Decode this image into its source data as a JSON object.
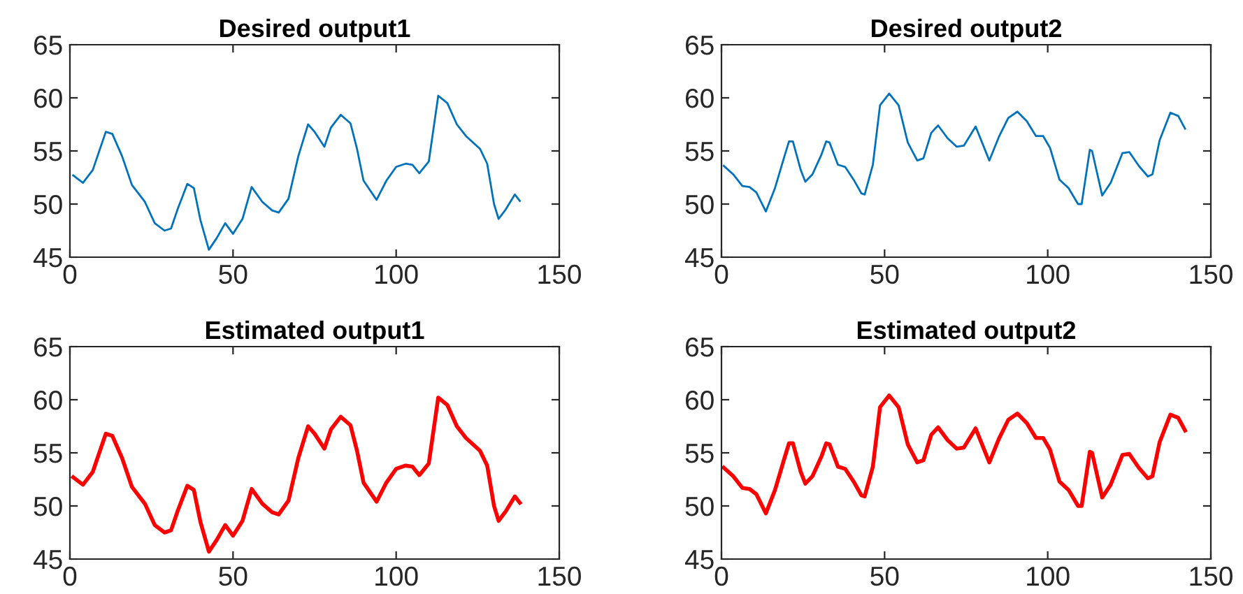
{
  "chart_data": [
    {
      "type": "line",
      "title": "Desired output1",
      "xlim": [
        0,
        150
      ],
      "ylim": [
        45,
        65
      ],
      "xticks": [
        0,
        50,
        100,
        150
      ],
      "yticks": [
        45,
        50,
        55,
        60,
        65
      ],
      "grid": false,
      "legend": false,
      "series": [
        {
          "color": "#0072bd",
          "x": [
            1,
            4,
            7,
            11,
            13,
            16,
            19,
            23,
            26,
            29,
            31,
            33,
            36,
            38,
            40,
            42.6,
            45,
            47.6,
            50,
            52.9,
            55.7,
            59,
            62,
            64,
            67,
            70,
            73,
            75,
            78,
            80,
            83,
            86,
            88,
            90,
            94,
            97,
            100,
            102.9,
            105,
            107.1,
            110,
            112.9,
            115.7,
            118.6,
            121.4,
            125.7,
            127.9,
            130,
            131.4,
            133.6,
            136.4,
            137.9
          ],
          "values": [
            52.7,
            52.0,
            53.2,
            56.8,
            56.6,
            54.5,
            51.8,
            50.2,
            48.2,
            47.5,
            47.7,
            49.5,
            51.9,
            51.5,
            48.5,
            45.7,
            46.8,
            48.2,
            47.2,
            48.6,
            51.6,
            50.2,
            49.4,
            49.2,
            50.5,
            54.5,
            57.5,
            56.8,
            55.4,
            57.2,
            58.4,
            57.6,
            55.2,
            52.2,
            50.4,
            52.2,
            53.5,
            53.8,
            53.7,
            52.9,
            54.0,
            60.2,
            59.5,
            57.5,
            56.4,
            55.2,
            53.8,
            50.0,
            48.6,
            49.5,
            50.9,
            50.3
          ]
        }
      ]
    },
    {
      "type": "line",
      "title": "Desired output2",
      "xlim": [
        0,
        150
      ],
      "ylim": [
        45,
        65
      ],
      "xticks": [
        0,
        50,
        100,
        150
      ],
      "yticks": [
        45,
        50,
        55,
        60,
        65
      ],
      "grid": false,
      "legend": false,
      "series": [
        {
          "color": "#0072bd",
          "x": [
            0.7,
            3.6,
            6.4,
            8.6,
            10.7,
            13.6,
            16.4,
            19.3,
            20.7,
            21.9,
            24.3,
            25.7,
            27.9,
            30.7,
            32.1,
            33.1,
            35.7,
            37.9,
            40.7,
            42.9,
            43.9,
            46.4,
            48.6,
            51.4,
            54.3,
            57.1,
            60,
            61.9,
            64.3,
            66.4,
            69.3,
            72.1,
            74.3,
            77.9,
            80,
            82.1,
            85,
            87.9,
            90.7,
            93.6,
            96.4,
            98.6,
            100.7,
            103.6,
            106.4,
            109.3,
            110.4,
            112.9,
            113.6,
            116.7,
            119.3,
            122.9,
            125,
            127.9,
            130.7,
            132.1,
            134.3,
            137.6,
            140,
            142.1
          ],
          "values": [
            53.6,
            52.8,
            51.7,
            51.6,
            51.1,
            49.3,
            51.5,
            54.5,
            55.9,
            55.9,
            53.2,
            52.1,
            52.8,
            54.7,
            55.9,
            55.8,
            53.7,
            53.5,
            52.2,
            51.0,
            50.9,
            53.7,
            59.3,
            60.4,
            59.3,
            55.8,
            54.1,
            54.3,
            56.7,
            57.4,
            56.2,
            55.4,
            55.5,
            57.3,
            55.7,
            54.1,
            56.3,
            58.1,
            58.7,
            57.8,
            56.4,
            56.4,
            55.3,
            52.3,
            51.5,
            50.0,
            50.0,
            55.1,
            55.0,
            50.8,
            52.0,
            54.8,
            54.9,
            53.6,
            52.6,
            52.8,
            56.0,
            58.6,
            58.3,
            57.1
          ]
        }
      ]
    },
    {
      "type": "line",
      "title": "Estimated output1",
      "xlim": [
        0,
        150
      ],
      "ylim": [
        45,
        65
      ],
      "xticks": [
        0,
        50,
        100,
        150
      ],
      "yticks": [
        45,
        50,
        55,
        60,
        65
      ],
      "grid": false,
      "legend": false,
      "series": [
        {
          "color": "#ff0000",
          "x": [
            1,
            4,
            7,
            11,
            13,
            16,
            19,
            23,
            26,
            29,
            31,
            33,
            36,
            38,
            40,
            42.6,
            45,
            47.6,
            50,
            52.9,
            55.7,
            59,
            62,
            64,
            67,
            70,
            73,
            75,
            78,
            80,
            83,
            86,
            88,
            90,
            94,
            97,
            100,
            102.9,
            105,
            107.1,
            110,
            112.9,
            115.7,
            118.6,
            121.4,
            125.7,
            127.9,
            130,
            131.4,
            133.6,
            136.4,
            137.9
          ],
          "values": [
            52.7,
            52.0,
            53.2,
            56.8,
            56.6,
            54.5,
            51.8,
            50.2,
            48.2,
            47.5,
            47.7,
            49.5,
            51.9,
            51.5,
            48.5,
            45.7,
            46.8,
            48.2,
            47.2,
            48.6,
            51.6,
            50.2,
            49.4,
            49.2,
            50.5,
            54.5,
            57.5,
            56.8,
            55.4,
            57.2,
            58.4,
            57.6,
            55.2,
            52.2,
            50.4,
            52.2,
            53.5,
            53.8,
            53.7,
            52.9,
            54.0,
            60.2,
            59.5,
            57.5,
            56.4,
            55.2,
            53.8,
            50.0,
            48.6,
            49.5,
            50.9,
            50.3
          ]
        }
      ]
    },
    {
      "type": "line",
      "title": "Estimated output2",
      "xlim": [
        0,
        150
      ],
      "ylim": [
        45,
        65
      ],
      "xticks": [
        0,
        50,
        100,
        150
      ],
      "yticks": [
        45,
        50,
        55,
        60,
        65
      ],
      "grid": false,
      "legend": false,
      "series": [
        {
          "color": "#ff0000",
          "x": [
            0.7,
            3.6,
            6.4,
            8.6,
            10.7,
            13.6,
            16.4,
            19.3,
            20.7,
            21.9,
            24.3,
            25.7,
            27.9,
            30.7,
            32.1,
            33.1,
            35.7,
            37.9,
            40.7,
            42.9,
            43.9,
            46.4,
            48.6,
            51.4,
            54.3,
            57.1,
            60,
            61.9,
            64.3,
            66.4,
            69.3,
            72.1,
            74.3,
            77.9,
            80,
            82.1,
            85,
            87.9,
            90.7,
            93.6,
            96.4,
            98.6,
            100.7,
            103.6,
            106.4,
            109.3,
            110.4,
            112.9,
            113.6,
            116.7,
            119.3,
            122.9,
            125,
            127.9,
            130.7,
            132.1,
            134.3,
            137.6,
            140,
            142.1
          ],
          "values": [
            53.6,
            52.8,
            51.7,
            51.6,
            51.1,
            49.3,
            51.5,
            54.5,
            55.9,
            55.9,
            53.2,
            52.1,
            52.8,
            54.7,
            55.9,
            55.8,
            53.7,
            53.5,
            52.2,
            51.0,
            50.9,
            53.7,
            59.3,
            60.4,
            59.3,
            55.8,
            54.1,
            54.3,
            56.7,
            57.4,
            56.2,
            55.4,
            55.5,
            57.3,
            55.7,
            54.1,
            56.3,
            58.1,
            58.7,
            57.8,
            56.4,
            56.4,
            55.3,
            52.3,
            51.5,
            50.0,
            50.0,
            55.1,
            55.0,
            50.8,
            52.0,
            54.8,
            54.9,
            53.6,
            52.6,
            52.8,
            56.0,
            58.6,
            58.3,
            57.1
          ]
        }
      ]
    }
  ]
}
